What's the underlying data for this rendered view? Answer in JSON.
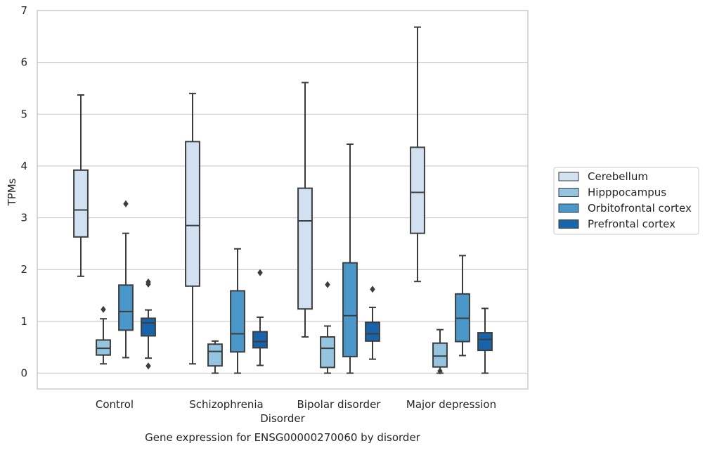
{
  "chart_data": {
    "type": "box",
    "title": "Gene expression for ENSG00000270060 by disorder",
    "xlabel": "Disorder",
    "ylabel": "TPMs",
    "ylim": [
      -0.3,
      7.0
    ],
    "y_ticks": [
      0,
      1,
      2,
      3,
      4,
      5,
      6,
      7
    ],
    "grid": true,
    "legend_position": "right",
    "categories": [
      "Control",
      "Schizophrenia",
      "Bipolar disorder",
      "Major depression"
    ],
    "series": [
      {
        "name": "Cerebellum",
        "color": "#d1e1f1",
        "boxes": [
          {
            "whislo": 1.87,
            "q1": 2.63,
            "med": 3.15,
            "q3": 3.92,
            "whishi": 5.37,
            "fliers": []
          },
          {
            "whislo": 0.18,
            "q1": 1.68,
            "med": 2.85,
            "q3": 4.47,
            "whishi": 5.4,
            "fliers": []
          },
          {
            "whislo": 0.7,
            "q1": 1.24,
            "med": 2.94,
            "q3": 3.57,
            "whishi": 5.61,
            "fliers": []
          },
          {
            "whislo": 1.77,
            "q1": 2.7,
            "med": 3.49,
            "q3": 4.36,
            "whishi": 6.68,
            "fliers": []
          }
        ]
      },
      {
        "name": "Hipppocampus",
        "color": "#94c4df",
        "boxes": [
          {
            "whislo": 0.18,
            "q1": 0.35,
            "med": 0.48,
            "q3": 0.64,
            "whishi": 1.05,
            "fliers": [
              1.23
            ]
          },
          {
            "whislo": 0.0,
            "q1": 0.14,
            "med": 0.42,
            "q3": 0.56,
            "whishi": 0.62,
            "fliers": []
          },
          {
            "whislo": 0.0,
            "q1": 0.11,
            "med": 0.48,
            "q3": 0.7,
            "whishi": 0.91,
            "fliers": [
              1.71
            ]
          },
          {
            "whislo": 0.0,
            "q1": 0.12,
            "med": 0.33,
            "q3": 0.58,
            "whishi": 0.84,
            "fliers": [
              0.04
            ]
          }
        ]
      },
      {
        "name": "Orbitofrontal cortex",
        "color": "#4a98c9",
        "boxes": [
          {
            "whislo": 0.3,
            "q1": 0.83,
            "med": 1.19,
            "q3": 1.7,
            "whishi": 2.7,
            "fliers": [
              3.27
            ]
          },
          {
            "whislo": 0.0,
            "q1": 0.41,
            "med": 0.76,
            "q3": 1.59,
            "whishi": 2.4,
            "fliers": []
          },
          {
            "whislo": 0.0,
            "q1": 0.32,
            "med": 1.11,
            "q3": 2.13,
            "whishi": 4.42,
            "fliers": []
          },
          {
            "whislo": 0.34,
            "q1": 0.61,
            "med": 1.06,
            "q3": 1.53,
            "whishi": 2.27,
            "fliers": []
          }
        ]
      },
      {
        "name": "Prefrontal cortex",
        "color": "#1764ab",
        "boxes": [
          {
            "whislo": 0.29,
            "q1": 0.72,
            "med": 0.97,
            "q3": 1.06,
            "whishi": 1.22,
            "fliers": [
              1.72,
              1.76,
              0.14
            ]
          },
          {
            "whislo": 0.15,
            "q1": 0.49,
            "med": 0.61,
            "q3": 0.8,
            "whishi": 1.08,
            "fliers": [
              1.94
            ]
          },
          {
            "whislo": 0.27,
            "q1": 0.62,
            "med": 0.76,
            "q3": 0.98,
            "whishi": 1.27,
            "fliers": [
              1.62
            ]
          },
          {
            "whislo": 0.0,
            "q1": 0.44,
            "med": 0.65,
            "q3": 0.78,
            "whishi": 1.25,
            "fliers": []
          }
        ]
      }
    ]
  }
}
